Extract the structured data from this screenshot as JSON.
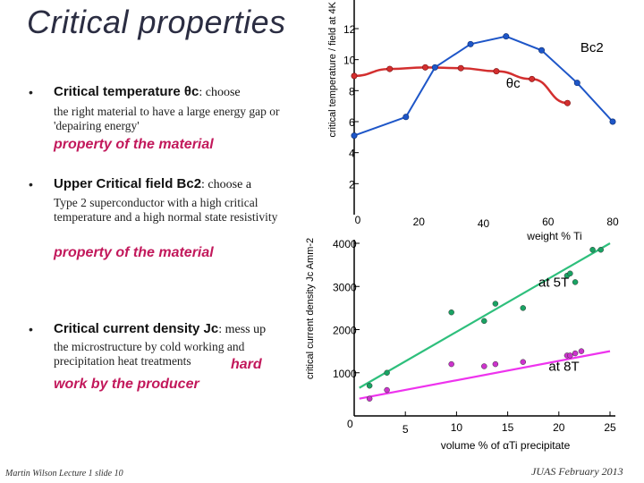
{
  "slide": {
    "title": "Critical properties",
    "footer_left": "Martin Wilson Lecture 1 slide 10",
    "footer_right": "JUAS February 2013"
  },
  "bullets": [
    {
      "head": "Critical temperature θc",
      "rest": ": choose",
      "text": "the right material to have a large energy gap or 'depairing energy'",
      "property": "property of the material"
    },
    {
      "head": "Upper Critical field Bc2",
      "rest": ": choose a",
      "text": "Type 2 superconductor with a high critical temperature and a high normal state resistivity",
      "property": "property of the material"
    },
    {
      "head": "Critical current density Jc",
      "rest": ": mess up",
      "text": "the microstructure by cold working and precipitation heat treatments",
      "hard": "hard",
      "hard2": "work by the producer"
    }
  ],
  "chart_data": [
    {
      "type": "line",
      "ylabel": "critical temperature / field at 4K",
      "xlabel": "weight % Ti",
      "xlim": [
        0,
        80
      ],
      "ylim": [
        0,
        12
      ],
      "x_ticks": [
        "0",
        "20",
        "40",
        "60",
        "80"
      ],
      "y_ticks": [
        "2",
        "4",
        "6",
        "8",
        "10",
        "12"
      ],
      "series": [
        {
          "name": "θc",
          "color": "#d32f2f",
          "x": [
            0,
            11,
            22,
            33,
            44,
            55,
            66
          ],
          "y": [
            8.95,
            9.4,
            9.5,
            9.45,
            9.25,
            8.75,
            7.2
          ],
          "curve": true
        },
        {
          "name": "Bc2",
          "color": "#1e56c8",
          "x": [
            0,
            16,
            25,
            36,
            47,
            58,
            69,
            80
          ],
          "y": [
            5.1,
            6.3,
            9.5,
            11.0,
            11.5,
            10.6,
            8.5,
            6.0
          ]
        }
      ],
      "labels": [
        {
          "text": "Bc2",
          "x": 70,
          "y": 10.5
        },
        {
          "text": "θc",
          "x": 47,
          "y": 8.2
        }
      ]
    },
    {
      "type": "scatter",
      "ylabel": "critical current density Jc Amm-2",
      "xlabel": "volume % of αTi precipitate",
      "xlim": [
        0,
        25
      ],
      "ylim": [
        0,
        4000
      ],
      "x_ticks": [
        "0",
        "5",
        "10",
        "15",
        "20",
        "25"
      ],
      "y_ticks": [
        "1000",
        "2000",
        "3000",
        "4000"
      ],
      "series": [
        {
          "name": "at 5T",
          "color": "#19a363",
          "line_color": "#2ebf7c",
          "points": [
            [
              1.5,
              700
            ],
            [
              3.2,
              1000
            ],
            [
              9.5,
              2400
            ],
            [
              12.7,
              2200
            ],
            [
              13.8,
              2600
            ],
            [
              16.5,
              2500
            ],
            [
              20.8,
              3250
            ],
            [
              21.1,
              3300
            ],
            [
              21.6,
              3100
            ],
            [
              23.3,
              3850
            ],
            [
              24.1,
              3850
            ]
          ],
          "fit": [
            [
              0.5,
              650
            ],
            [
              25,
              4000
            ]
          ]
        },
        {
          "name": "at 8T",
          "color": "#cc33cc",
          "line_color": "#ee33ee",
          "points": [
            [
              1.5,
              400
            ],
            [
              3.2,
              600
            ],
            [
              9.5,
              1200
            ],
            [
              12.7,
              1150
            ],
            [
              13.8,
              1200
            ],
            [
              16.5,
              1250
            ],
            [
              20.8,
              1400
            ],
            [
              21.1,
              1400
            ],
            [
              21.6,
              1450
            ],
            [
              22.2,
              1500
            ]
          ],
          "fit": [
            [
              0.5,
              400
            ],
            [
              25,
              1500
            ]
          ]
        }
      ],
      "labels": [
        {
          "text": "at 5T",
          "x": 19.5,
          "y": 3000
        },
        {
          "text": "at 8T",
          "x": 20.5,
          "y": 1050
        }
      ]
    }
  ]
}
